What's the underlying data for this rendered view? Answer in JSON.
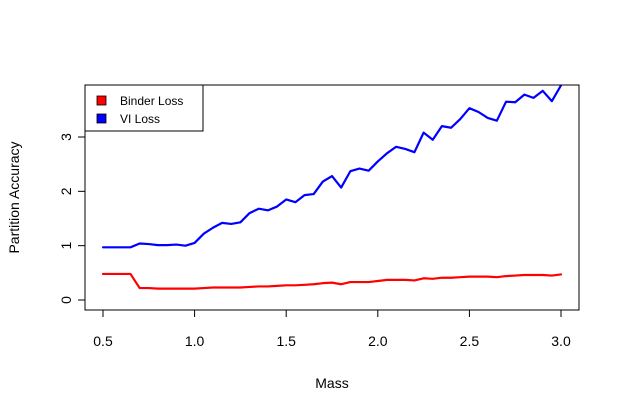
{
  "chart_data": {
    "type": "line",
    "title": "",
    "xlabel": "Mass",
    "ylabel": "Partition Accuracy",
    "xlim": [
      0.5,
      3.0
    ],
    "ylim": [
      0,
      3.9
    ],
    "x_ticks": [
      "0.5",
      "1.0",
      "1.5",
      "2.0",
      "2.5",
      "3.0"
    ],
    "y_ticks": [
      "0",
      "1",
      "2",
      "3"
    ],
    "grid": false,
    "legend_position": "top-left",
    "x": [
      0.5,
      0.55,
      0.6,
      0.65,
      0.7,
      0.75,
      0.8,
      0.85,
      0.9,
      0.95,
      1.0,
      1.05,
      1.1,
      1.15,
      1.2,
      1.25,
      1.3,
      1.35,
      1.4,
      1.45,
      1.5,
      1.55,
      1.6,
      1.65,
      1.7,
      1.75,
      1.8,
      1.85,
      1.9,
      1.95,
      2.0,
      2.05,
      2.1,
      2.15,
      2.2,
      2.25,
      2.3,
      2.35,
      2.4,
      2.45,
      2.5,
      2.55,
      2.6,
      2.65,
      2.7,
      2.75,
      2.8,
      2.85,
      2.9,
      2.95,
      3.0
    ],
    "series": [
      {
        "name": "Binder Loss",
        "color": "#ff0000",
        "values": [
          0.48,
          0.48,
          0.48,
          0.48,
          0.22,
          0.22,
          0.21,
          0.21,
          0.21,
          0.21,
          0.21,
          0.22,
          0.23,
          0.23,
          0.23,
          0.23,
          0.24,
          0.25,
          0.25,
          0.26,
          0.27,
          0.27,
          0.28,
          0.29,
          0.31,
          0.32,
          0.29,
          0.33,
          0.33,
          0.33,
          0.35,
          0.37,
          0.37,
          0.37,
          0.36,
          0.4,
          0.39,
          0.41,
          0.41,
          0.42,
          0.43,
          0.43,
          0.43,
          0.42,
          0.44,
          0.45,
          0.46,
          0.46,
          0.46,
          0.45,
          0.47
        ]
      },
      {
        "name": "VI Loss",
        "color": "#0000ff",
        "values": [
          0.97,
          0.97,
          0.97,
          0.97,
          1.04,
          1.03,
          1.01,
          1.01,
          1.02,
          1.0,
          1.05,
          1.22,
          1.33,
          1.42,
          1.4,
          1.43,
          1.6,
          1.68,
          1.65,
          1.72,
          1.85,
          1.8,
          1.93,
          1.95,
          2.18,
          2.28,
          2.07,
          2.37,
          2.42,
          2.38,
          2.55,
          2.7,
          2.82,
          2.78,
          2.72,
          3.08,
          2.95,
          3.2,
          3.17,
          3.33,
          3.53,
          3.46,
          3.35,
          3.3,
          3.65,
          3.64,
          3.78,
          3.72,
          3.85,
          3.66,
          3.95
        ]
      }
    ]
  }
}
